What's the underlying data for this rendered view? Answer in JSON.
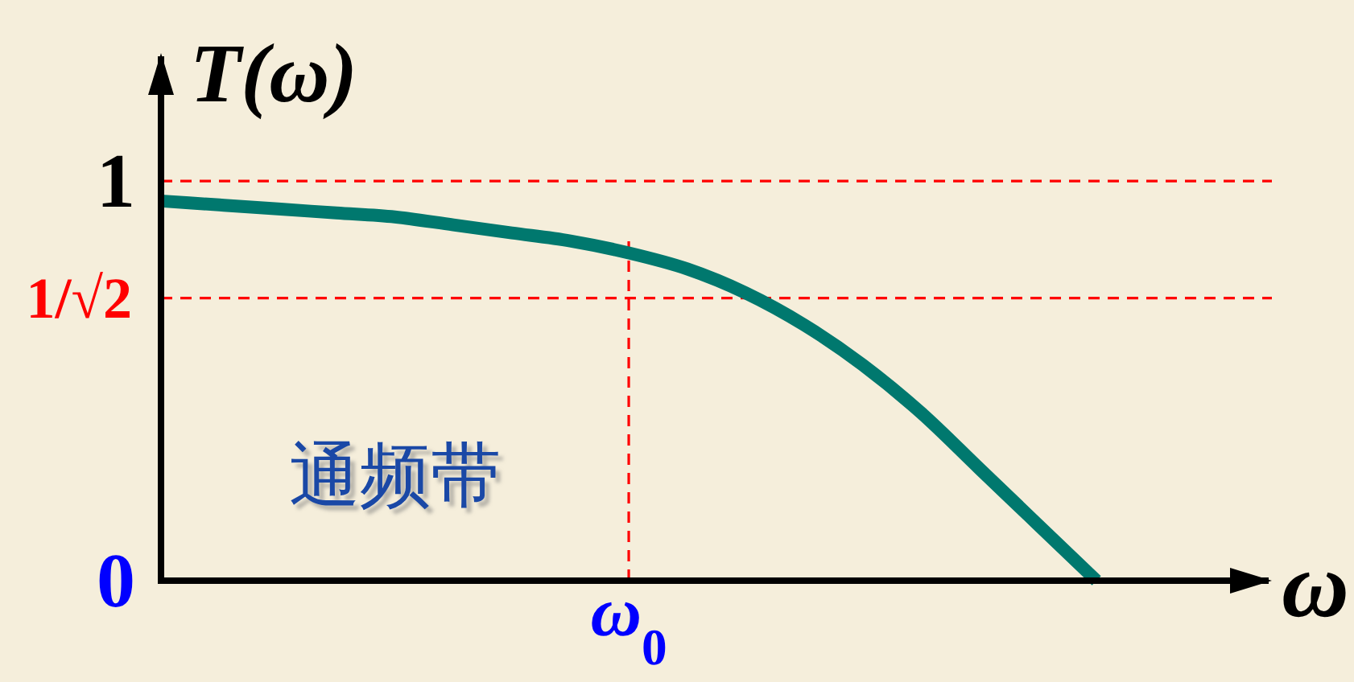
{
  "chart_data": {
    "type": "line",
    "ylabel": "T(ω)",
    "xlabel": "ω",
    "annotations": [
      "通频带"
    ],
    "categories": [
      null,
      null,
      null,
      null,
      null,
      null,
      null,
      null,
      "ω$_{0}$",
      null,
      null,
      null,
      null,
      null,
      null,
      null,
      null,
      null,
      null,
      null
    ],
    "series": [
      {
        "color": "#00786e",
        "line_style": "solid",
        "values": [
          0.95,
          0.94,
          0.93,
          0.92,
          0.91,
          0.89,
          0.87,
          0.85,
          0.82,
          0.78,
          0.72,
          0.64,
          0.54,
          0.42,
          0.28,
          0.14,
          0,
          null,
          null,
          null
        ]
      }
    ],
    "ylim": [
      0,
      1.32
    ],
    "yticks": [
      0,
      1
    ],
    "ref_lines": [
      {
        "axis": "y",
        "value": 1,
        "color": "#ff0000",
        "line_style": "dashed"
      },
      {
        "axis": "y",
        "value": 0.7071,
        "label": "1/√2",
        "color": "#ff0000",
        "line_style": "dashed"
      },
      {
        "axis": "x",
        "value": "ω$_{0}$",
        "color": "#ff0000",
        "line_style": "dashed"
      }
    ]
  }
}
